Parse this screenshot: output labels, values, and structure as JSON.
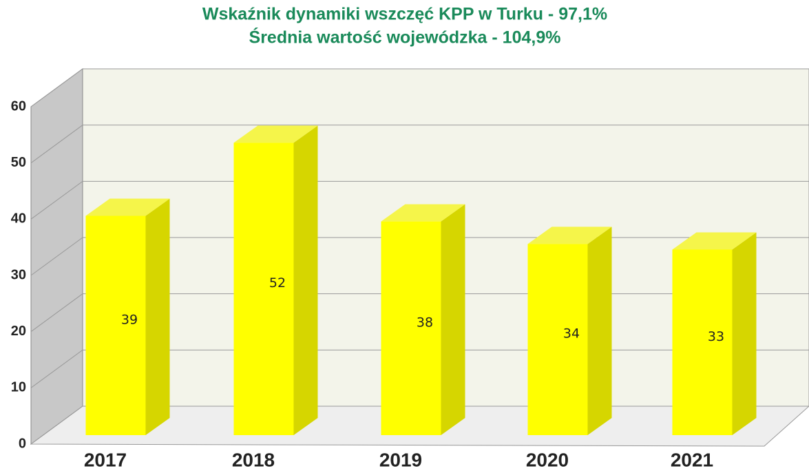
{
  "chart_data": {
    "type": "bar3d",
    "title": "Wskaźnik dynamiki wszczęć KPP w Turku - 97,1%",
    "subtitle": "Średnia wartość wojewódzka - 104,9%",
    "categories": [
      "2017",
      "2018",
      "2019",
      "2020",
      "2021"
    ],
    "values": [
      39,
      52,
      38,
      34,
      33
    ],
    "color": "#ffff00",
    "ylim": [
      0,
      60
    ],
    "yticks": [
      0,
      10,
      20,
      30,
      40,
      50,
      60
    ],
    "grid": true
  }
}
